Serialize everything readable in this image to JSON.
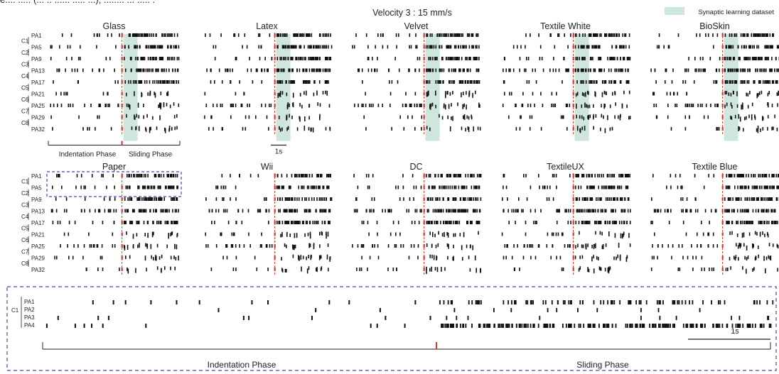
{
  "header": {
    "cropped_line": "e.... ..... (... .. ...... ..... ...), ........ ... ..... .",
    "velocity_label": "Velocity 3 : 15 mm/s",
    "legend_label": "Synaptic learning dataset",
    "legend_color": "#cfe6dc"
  },
  "row_labels": {
    "clusters": [
      "C1",
      "C2",
      "C3",
      "C4",
      "C5",
      "C6",
      "C7",
      "C8"
    ],
    "channels": [
      "PA1",
      "PA5",
      "PA9",
      "PA13",
      "PA17",
      "PA21",
      "PA25",
      "PA29",
      "PA32"
    ]
  },
  "phase_labels": {
    "indentation": "Indentation Phase",
    "sliding": "Sliding Phase",
    "scale_small": "1s",
    "scale_large": "1s"
  },
  "colors": {
    "spike": "#111111",
    "onset_marker": "#e0342f",
    "highlight_box": "#3b4cb8"
  },
  "chart_data": [
    {
      "type": "scatter",
      "title": "Glass",
      "spike_raster": true,
      "onset_time": 1.5,
      "sliding_window": [
        1.5,
        1.95
      ],
      "rows": 8
    },
    {
      "type": "scatter",
      "title": "Latex",
      "spike_raster": true,
      "onset_time": 1.5,
      "sliding_window": [
        1.5,
        1.95
      ],
      "rows": 8
    },
    {
      "type": "scatter",
      "title": "Velvet",
      "spike_raster": true,
      "onset_time": 1.5,
      "sliding_window": [
        1.5,
        1.95
      ],
      "rows": 8
    },
    {
      "type": "scatter",
      "title": "Textile White",
      "spike_raster": true,
      "onset_time": 1.5,
      "sliding_window": [
        1.5,
        1.95
      ],
      "rows": 8
    },
    {
      "type": "scatter",
      "title": "BioSkin",
      "spike_raster": true,
      "onset_time": 1.5,
      "sliding_window": [
        1.5,
        1.95
      ],
      "rows": 8
    },
    {
      "type": "scatter",
      "title": "Paper",
      "spike_raster": true,
      "onset_time": 1.5,
      "rows": 8
    },
    {
      "type": "scatter",
      "title": "Wii",
      "spike_raster": true,
      "onset_time": 1.5,
      "rows": 8
    },
    {
      "type": "scatter",
      "title": "DC",
      "spike_raster": true,
      "onset_time": 1.5,
      "rows": 8
    },
    {
      "type": "scatter",
      "title": "TextileUX",
      "spike_raster": true,
      "onset_time": 1.5,
      "rows": 8
    },
    {
      "type": "scatter",
      "title": "Textile Blue",
      "spike_raster": true,
      "onset_time": 1.5,
      "rows": 8
    },
    {
      "type": "scatter",
      "title": "",
      "spike_raster": true,
      "zoom_of": "Paper",
      "rows_labels": [
        "PA1",
        "PA2",
        "PA3",
        "PA4"
      ],
      "cluster_label": "C1",
      "onset_time": 1.5
    }
  ]
}
